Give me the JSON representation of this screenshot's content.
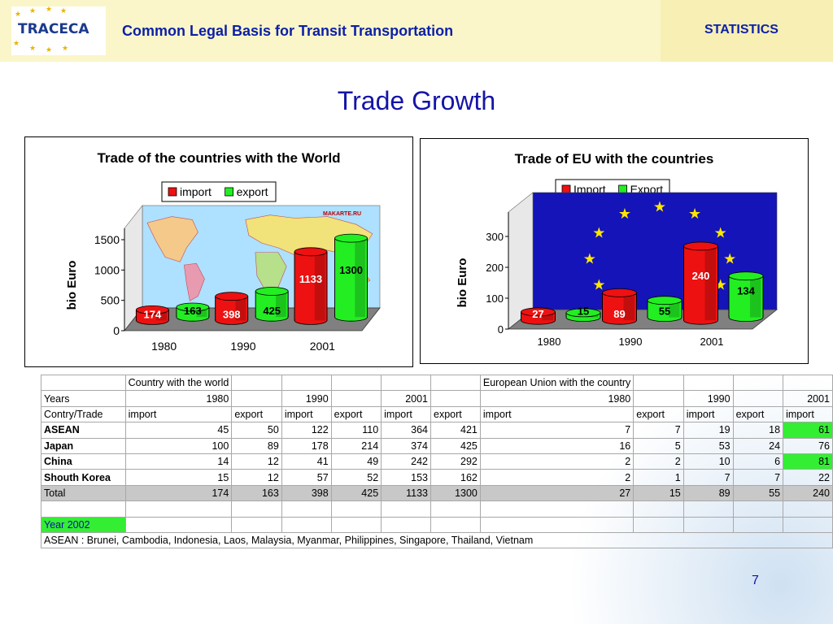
{
  "header": {
    "logo_text": "TRACECA",
    "title": "Common Legal Basis for Transit Transportation",
    "section": "STATISTICS"
  },
  "page_title": "Trade Growth",
  "chart_data": [
    {
      "type": "bar",
      "title": "Trade of the countries with the World",
      "ylabel": "bio Euro",
      "xlabel": "",
      "categories": [
        "1980",
        "1990",
        "2001"
      ],
      "series": [
        {
          "name": "import",
          "values": [
            174,
            398,
            1133
          ],
          "color": "#ee1111"
        },
        {
          "name": "export",
          "values": [
            163,
            425,
            1300
          ],
          "color": "#22ee22"
        }
      ],
      "ylim": [
        0,
        1500
      ],
      "yticks": [
        "0",
        "500",
        "1000",
        "1500"
      ],
      "legend": "top-center",
      "background": "world-map",
      "watermark": "MAKARTE.RU"
    },
    {
      "type": "bar",
      "title": "Trade of EU with the countries",
      "ylabel": "bio Euro",
      "xlabel": "",
      "categories": [
        "1980",
        "1990",
        "2001"
      ],
      "series": [
        {
          "name": "Import",
          "values": [
            27,
            89,
            240
          ],
          "color": "#ee1111"
        },
        {
          "name": "Export",
          "values": [
            15,
            55,
            134
          ],
          "color": "#22ee22"
        }
      ],
      "ylim": [
        0,
        300
      ],
      "yticks": [
        "0",
        "100",
        "200",
        "300"
      ],
      "legend": "top-center",
      "background": "eu-flag"
    }
  ],
  "table": {
    "header1": [
      "",
      "Country with the world",
      "",
      "",
      "",
      "",
      "",
      "European Union with the country",
      "",
      "",
      "",
      ""
    ],
    "header2": [
      "Years",
      "1980",
      "",
      "1990",
      "",
      "2001",
      "",
      "1980",
      "",
      "1990",
      "",
      "2001"
    ],
    "header3": [
      "Contry/Trade",
      "import",
      "export",
      "import",
      "export",
      "import",
      "export",
      "import",
      "export",
      "import",
      "export",
      "import"
    ],
    "rows": [
      {
        "label": "ASEAN",
        "values": [
          "45",
          "50",
          "122",
          "110",
          "364",
          "421",
          "7",
          "7",
          "19",
          "18",
          "61"
        ]
      },
      {
        "label": "Japan",
        "values": [
          "100",
          "89",
          "178",
          "214",
          "374",
          "425",
          "16",
          "5",
          "53",
          "24",
          "76"
        ]
      },
      {
        "label": "China",
        "values": [
          "14",
          "12",
          "41",
          "49",
          "242",
          "292",
          "2",
          "2",
          "10",
          "6",
          "81"
        ]
      },
      {
        "label": "Shouth Korea",
        "values": [
          "15",
          "12",
          "57",
          "52",
          "153",
          "162",
          "2",
          "1",
          "7",
          "7",
          "22"
        ]
      }
    ],
    "total": {
      "label": "Total",
      "values": [
        "174",
        "163",
        "398",
        "425",
        "1133",
        "1300",
        "27",
        "15",
        "89",
        "55",
        "240"
      ]
    },
    "year_note": "Year 2002",
    "footnote": "ASEAN : Brunei, Cambodia, Indonesia, Laos, Malaysia, Myanmar, Philippines, Singapore, Thailand, Vietnam"
  },
  "page_number": "7"
}
